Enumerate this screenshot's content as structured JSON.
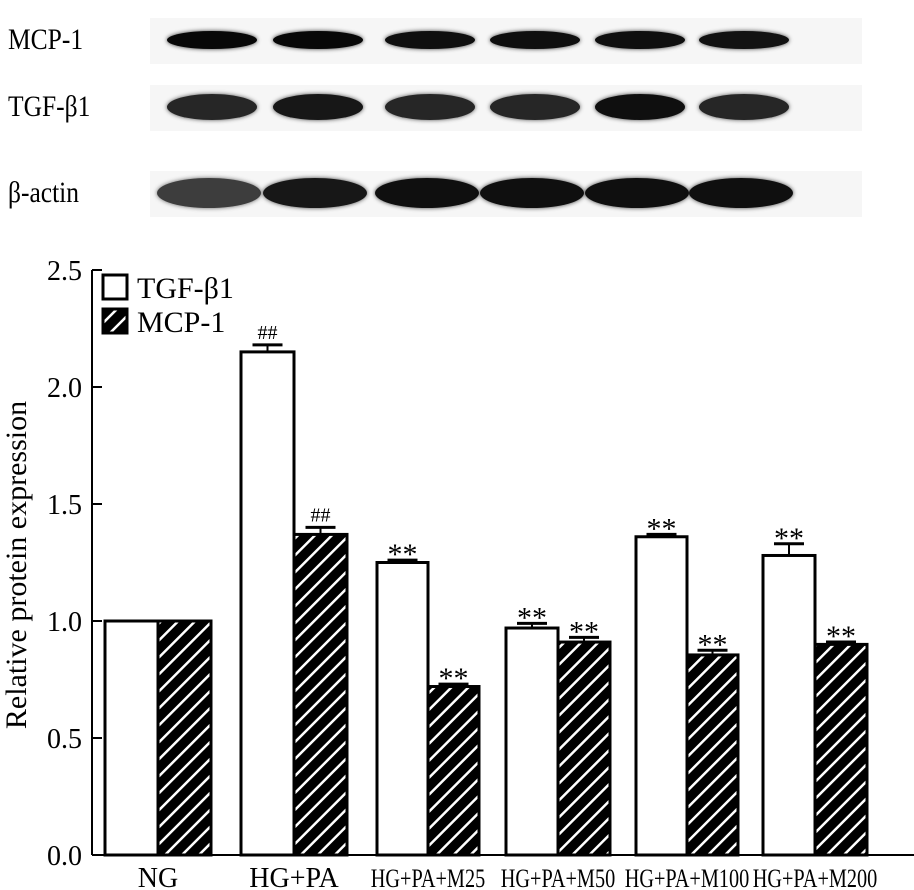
{
  "blot": {
    "rows": [
      {
        "label": "MCP-1",
        "intensities": [
          0.95,
          0.95,
          0.9,
          0.9,
          0.9,
          0.88
        ]
      },
      {
        "label": "TGF-β1",
        "intensities": [
          0.75,
          0.85,
          0.75,
          0.75,
          0.9,
          0.75
        ]
      },
      {
        "label": "β-actin",
        "intensities": [
          0.6,
          0.85,
          0.9,
          0.9,
          0.9,
          0.9
        ]
      }
    ]
  },
  "chart_data": {
    "type": "bar",
    "title": "",
    "xlabel": "",
    "ylabel": "Relative protein expression",
    "ylim": [
      0,
      2.5
    ],
    "yticks": [
      "0.0",
      "0.5",
      "1.0",
      "1.5",
      "2.0",
      "2.5"
    ],
    "grid": false,
    "legend_position": "upper-left",
    "categories": [
      "NG",
      "HG+PA",
      "HG+PA+M25",
      "HG+PA+M50",
      "HG+PA+M100",
      "HG+PA+M200"
    ],
    "series": [
      {
        "name": "TGF-β1",
        "fill": "white",
        "values": [
          1.0,
          2.15,
          1.25,
          0.97,
          1.36,
          1.28
        ],
        "errors": [
          0,
          0.03,
          0.01,
          0.02,
          0.01,
          0.05
        ],
        "annotations": [
          "",
          "##",
          "**",
          "**",
          "**",
          "**"
        ]
      },
      {
        "name": "MCP-1",
        "fill": "hatched",
        "values": [
          1.0,
          1.37,
          0.72,
          0.91,
          0.855,
          0.9
        ],
        "errors": [
          0,
          0.03,
          0.01,
          0.02,
          0.02,
          0.01
        ],
        "annotations": [
          "",
          "##",
          "**",
          "**",
          "**",
          "**"
        ]
      }
    ]
  }
}
